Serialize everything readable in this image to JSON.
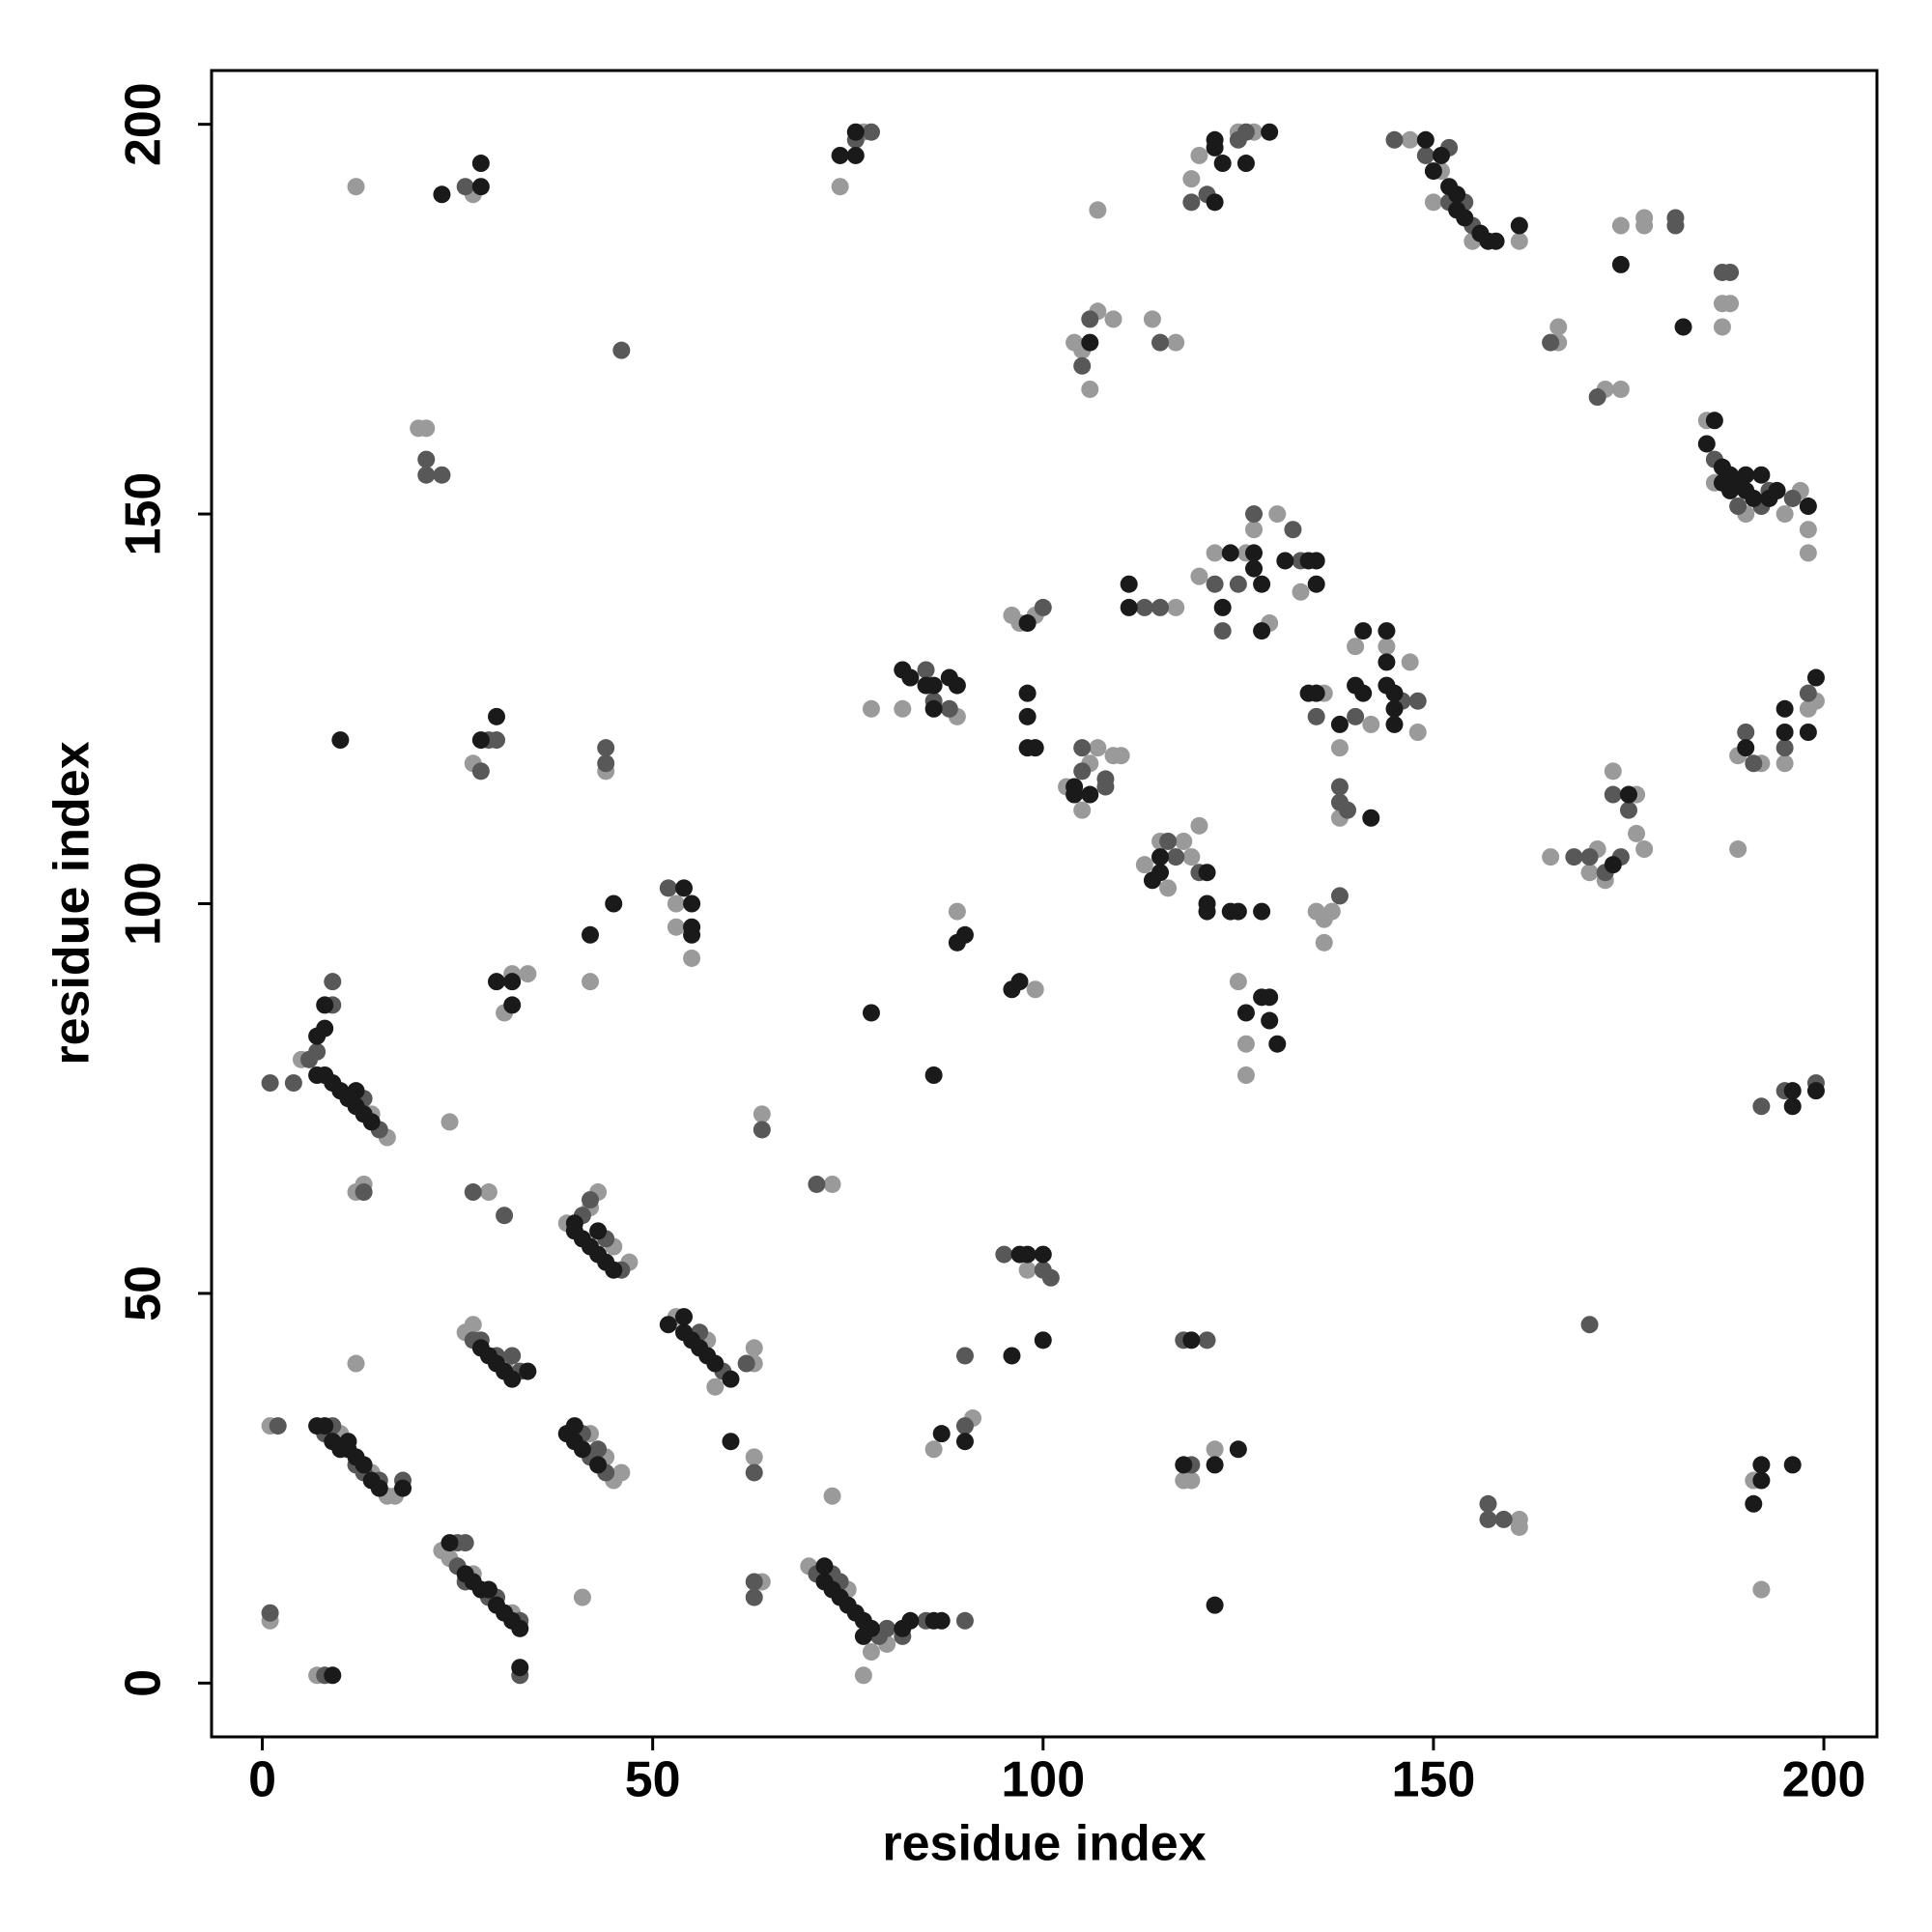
{
  "chart_data": {
    "type": "scatter",
    "xlabel": "residue index",
    "ylabel": "residue index",
    "xlim": [
      -6.5,
      206.8
    ],
    "ylim": [
      -6.9,
      206.9
    ],
    "xticks": [
      0,
      50,
      100,
      150,
      200
    ],
    "yticks": [
      0,
      50,
      100,
      150,
      200
    ],
    "grid": false,
    "series": [
      {
        "color": "#1a1a1a",
        "x": [
          7,
          8,
          9,
          10,
          11,
          11,
          12,
          13,
          14,
          15,
          18,
          9,
          24,
          26,
          27,
          28,
          30,
          31,
          32,
          33,
          29,
          33,
          40,
          40,
          41,
          42,
          43,
          44,
          45,
          43,
          28,
          29,
          30,
          31,
          32,
          34,
          39,
          40,
          40,
          41,
          43,
          52,
          54,
          54,
          55,
          56,
          57,
          58,
          60,
          72,
          73,
          74,
          75,
          76,
          77,
          77,
          78,
          72,
          82,
          83,
          86,
          87,
          7,
          8,
          8,
          7,
          8,
          9,
          10,
          11,
          12,
          13,
          14,
          12,
          10,
          23,
          28,
          28,
          28,
          30,
          30,
          32,
          32,
          42,
          45,
          55,
          55,
          55,
          54,
          60,
          74,
          76,
          76,
          78,
          82,
          83,
          85,
          86,
          86,
          88,
          89,
          86,
          87,
          90,
          89,
          90,
          96,
          97,
          96,
          100,
          97,
          98,
          100,
          98,
          98,
          98,
          99,
          98,
          106,
          104,
          104,
          106,
          114,
          115,
          115,
          121,
          111,
          111,
          119,
          118,
          122,
          125,
          122,
          121,
          121,
          124,
          125,
          128,
          126,
          128,
          129,
          129,
          130,
          123,
          124,
          127,
          127,
          128,
          128,
          131,
          134,
          135,
          135,
          134,
          135,
          138,
          141,
          140,
          141,
          142,
          144,
          144,
          144,
          145,
          145,
          145,
          122,
          122,
          122,
          123,
          126,
          129,
          149,
          150,
          151,
          152,
          153,
          153,
          154,
          156,
          157,
          158,
          161,
          173,
          175,
          174,
          182,
          186,
          185,
          187,
          188,
          189,
          190,
          191,
          194,
          198,
          187,
          188,
          190,
          192,
          193,
          190,
          195,
          195,
          198,
          199,
          196,
          196,
          199,
          191,
          192,
          192,
          196
        ],
        "values": [
          33,
          33,
          31,
          30,
          30,
          31,
          29,
          28,
          26,
          25,
          25,
          1,
          18,
          14,
          13,
          12,
          10,
          9,
          8,
          7,
          12,
          2,
          59,
          58,
          57,
          56,
          55,
          54,
          53,
          58,
          43,
          42,
          41,
          40,
          39,
          40,
          32,
          33,
          31,
          30,
          28,
          46,
          45,
          47,
          44,
          43,
          42,
          41,
          39,
          13,
          12,
          11,
          10,
          9,
          8,
          6,
          7,
          15,
          7,
          8,
          8,
          8,
          83,
          84,
          87,
          78,
          78,
          77,
          76,
          75,
          74,
          73,
          72,
          76,
          121,
          191,
          195,
          192,
          121,
          124,
          90,
          87,
          90,
          96,
          100,
          100,
          97,
          96,
          102,
          31,
          196,
          196,
          199,
          86,
          130,
          129,
          128,
          128,
          125,
          129,
          128,
          78,
          32,
          31,
          95,
          96,
          89,
          90,
          42,
          44,
          55,
          55,
          55,
          127,
          124,
          120,
          120,
          136,
          172,
          115,
          114,
          114,
          103,
          104,
          106,
          104,
          141,
          138,
          44,
          28,
          28,
          30,
          10,
          99,
          100,
          99,
          99,
          99,
          86,
          88,
          88,
          85,
          82,
          138,
          145,
          143,
          145,
          141,
          135,
          144,
          144,
          141,
          144,
          127,
          127,
          123,
          135,
          128,
          127,
          111,
          135,
          131,
          128,
          127,
          125,
          123,
          190,
          197,
          198,
          195,
          195,
          199,
          198,
          194,
          196,
          192,
          191,
          189,
          188,
          186,
          185,
          185,
          187,
          105,
          114,
          182,
          174,
          162,
          159,
          156,
          155,
          154,
          153,
          152,
          153,
          151,
          154,
          153,
          155,
          155,
          152,
          120,
          122,
          125,
          122,
          129,
          74,
          76,
          76,
          23,
          28,
          26,
          28
        ]
      },
      {
        "color": "#585858",
        "x": [
          8,
          9,
          12,
          13,
          15,
          18,
          2,
          1,
          8,
          25,
          26,
          25,
          29,
          33,
          26,
          30,
          33,
          46,
          41,
          42,
          44,
          27,
          33,
          28,
          30,
          32,
          42,
          44,
          41,
          43,
          59,
          56,
          62,
          71,
          79,
          80,
          73,
          74,
          85,
          90,
          82,
          6,
          7,
          9,
          9,
          15,
          13,
          1,
          4,
          13,
          26,
          21,
          21,
          23,
          27,
          31,
          28,
          29,
          30,
          44,
          44,
          46,
          52,
          63,
          63,
          63,
          64,
          71,
          76,
          78,
          85,
          86,
          88,
          90,
          90,
          95,
          100,
          101,
          100,
          106,
          105,
          105,
          105,
          108,
          108,
          116,
          120,
          117,
          113,
          115,
          115,
          118,
          121,
          119,
          122,
          123,
          125,
          127,
          132,
          133,
          135,
          138,
          138,
          139,
          138,
          140,
          146,
          148,
          119,
          121,
          125,
          126,
          145,
          149,
          152,
          152,
          154,
          155,
          165,
          168,
          170,
          172,
          174,
          173,
          175,
          171,
          181,
          181,
          170,
          157,
          157,
          159,
          186,
          192,
          193,
          196,
          189,
          187,
          188,
          190,
          191,
          195,
          198,
          192,
          195,
          199
        ],
        "values": [
          32,
          33,
          28,
          27,
          26,
          26,
          33,
          9,
          1,
          18,
          18,
          15,
          11,
          8,
          13,
          11,
          1,
          53,
          60,
          62,
          57,
          44,
          40,
          44,
          42,
          42,
          29,
          27,
          32,
          30,
          40,
          45,
          41,
          14,
          6,
          7,
          14,
          13,
          8,
          8,
          6,
          80,
          81,
          87,
          90,
          71,
          75,
          77,
          77,
          63,
          192,
          157,
          155,
          155,
          63,
          60,
          117,
          121,
          121,
          120,
          118,
          171,
          102,
          27,
          13,
          11,
          71,
          64,
          198,
          199,
          130,
          126,
          125,
          33,
          42,
          55,
          53,
          52,
          138,
          175,
          169,
          117,
          120,
          116,
          115,
          108,
          104,
          106,
          138,
          138,
          172,
          44,
          44,
          28,
          141,
          135,
          141,
          150,
          148,
          144,
          124,
          115,
          113,
          112,
          101,
          124,
          126,
          126,
          190,
          191,
          198,
          199,
          198,
          196,
          190,
          197,
          190,
          187,
          172,
          106,
          106,
          104,
          106,
          114,
          112,
          165,
          188,
          187,
          46,
          23,
          21,
          21,
          157,
          151,
          153,
          152,
          151,
          181,
          181,
          122,
          118,
          120,
          127,
          74,
          76,
          77
        ]
      },
      {
        "color": "#9a9a9a",
        "x": [
          10,
          14,
          16,
          17,
          1,
          1,
          7,
          23,
          24,
          27,
          32,
          39,
          47,
          42,
          43,
          45,
          26,
          27,
          31,
          45,
          46,
          42,
          44,
          53,
          58,
          57,
          63,
          63,
          70,
          80,
          78,
          77,
          75,
          16,
          14,
          5,
          12,
          13,
          12,
          12,
          27,
          20,
          21,
          24,
          29,
          27,
          31,
          32,
          34,
          42,
          44,
          41,
          53,
          53,
          55,
          63,
          64,
          64,
          73,
          73,
          74,
          77,
          78,
          82,
          89,
          86,
          91,
          89,
          99,
          98,
          97,
          99,
          96,
          104,
          105,
          107,
          106,
          107,
          109,
          103,
          106,
          107,
          109,
          110,
          105,
          113,
          116,
          118,
          119,
          120,
          115,
          117,
          114,
          117,
          118,
          119,
          122,
          125,
          126,
          126,
          120,
          122,
          126,
          127,
          129,
          130,
          133,
          136,
          138,
          138,
          137,
          136,
          135,
          136,
          140,
          142,
          144,
          147,
          148,
          119,
          120,
          125,
          127,
          147,
          150,
          151,
          155,
          161,
          166,
          166,
          165,
          170,
          171,
          172,
          173,
          176,
          176,
          177,
          172,
          174,
          174,
          177,
          177,
          161,
          161,
          185,
          195,
          197,
          198,
          198,
          186,
          190,
          187,
          188,
          187,
          189,
          189,
          192,
          195,
          198,
          199,
          191,
          192
        ],
        "values": [
          32,
          27,
          24,
          24,
          33,
          8,
          1,
          17,
          16,
          14,
          9,
          59,
          54,
          61,
          63,
          56,
          45,
          46,
          41,
          26,
          27,
          32,
          29,
          47,
          38,
          44,
          43,
          41,
          15,
          5,
          4,
          1,
          12,
          70,
          73,
          80,
          63,
          64,
          41,
          192,
          191,
          161,
          161,
          72,
          63,
          118,
          86,
          91,
          91,
          90,
          117,
          11,
          100,
          97,
          93,
          29,
          13,
          73,
          64,
          24,
          192,
          199,
          125,
          125,
          124,
          30,
          34,
          99,
          89,
          53,
          136,
          137,
          137,
          172,
          171,
          176,
          166,
          189,
          175,
          115,
          118,
          120,
          119,
          119,
          112,
          105,
          102,
          108,
          106,
          110,
          108,
          138,
          175,
          172,
          26,
          26,
          30,
          90,
          82,
          78,
          142,
          145,
          145,
          148,
          136,
          150,
          140,
          127,
          120,
          111,
          99,
          98,
          99,
          95,
          133,
          123,
          133,
          131,
          122,
          193,
          196,
          199,
          199,
          198,
          190,
          194,
          185,
          185,
          172,
          174,
          106,
          104,
          107,
          103,
          117,
          114,
          109,
          107,
          166,
          166,
          187,
          187,
          188,
          21,
          20,
          162,
          150,
          153,
          148,
          145,
          154,
          150,
          177,
          177,
          174,
          107,
          119,
          118,
          118,
          125,
          126,
          26,
          12
        ]
      }
    ]
  }
}
